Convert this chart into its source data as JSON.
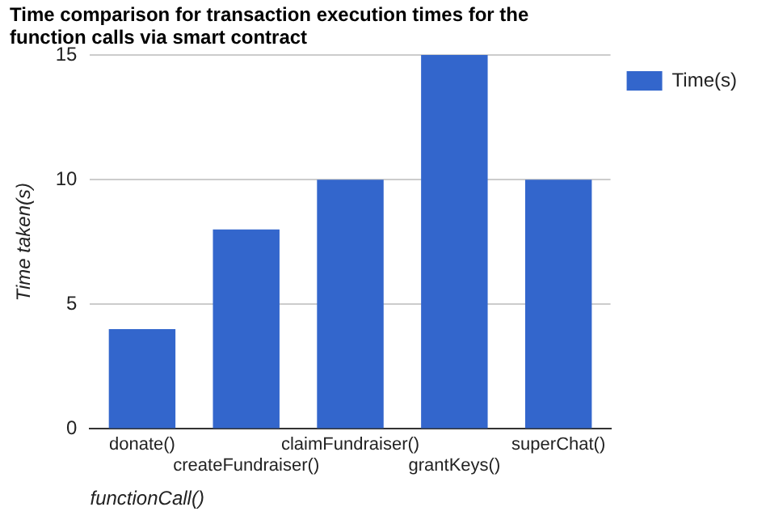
{
  "chart_data": {
    "type": "bar",
    "title": "Time comparison for transaction execution times for the function calls via smart contract",
    "xlabel": "functionCall()",
    "ylabel": "Time taken(s)",
    "categories": [
      "donate()",
      "createFundraiser()",
      "claimFundraiser()",
      "grantKeys()",
      "superChat()"
    ],
    "series": [
      {
        "name": "Time(s)",
        "color": "#3366cc",
        "values": [
          4,
          8,
          10,
          15,
          10
        ]
      }
    ],
    "ylim": [
      0,
      15
    ],
    "yticks": [
      0,
      5,
      10,
      15
    ],
    "grid": "y",
    "legend": "right"
  }
}
